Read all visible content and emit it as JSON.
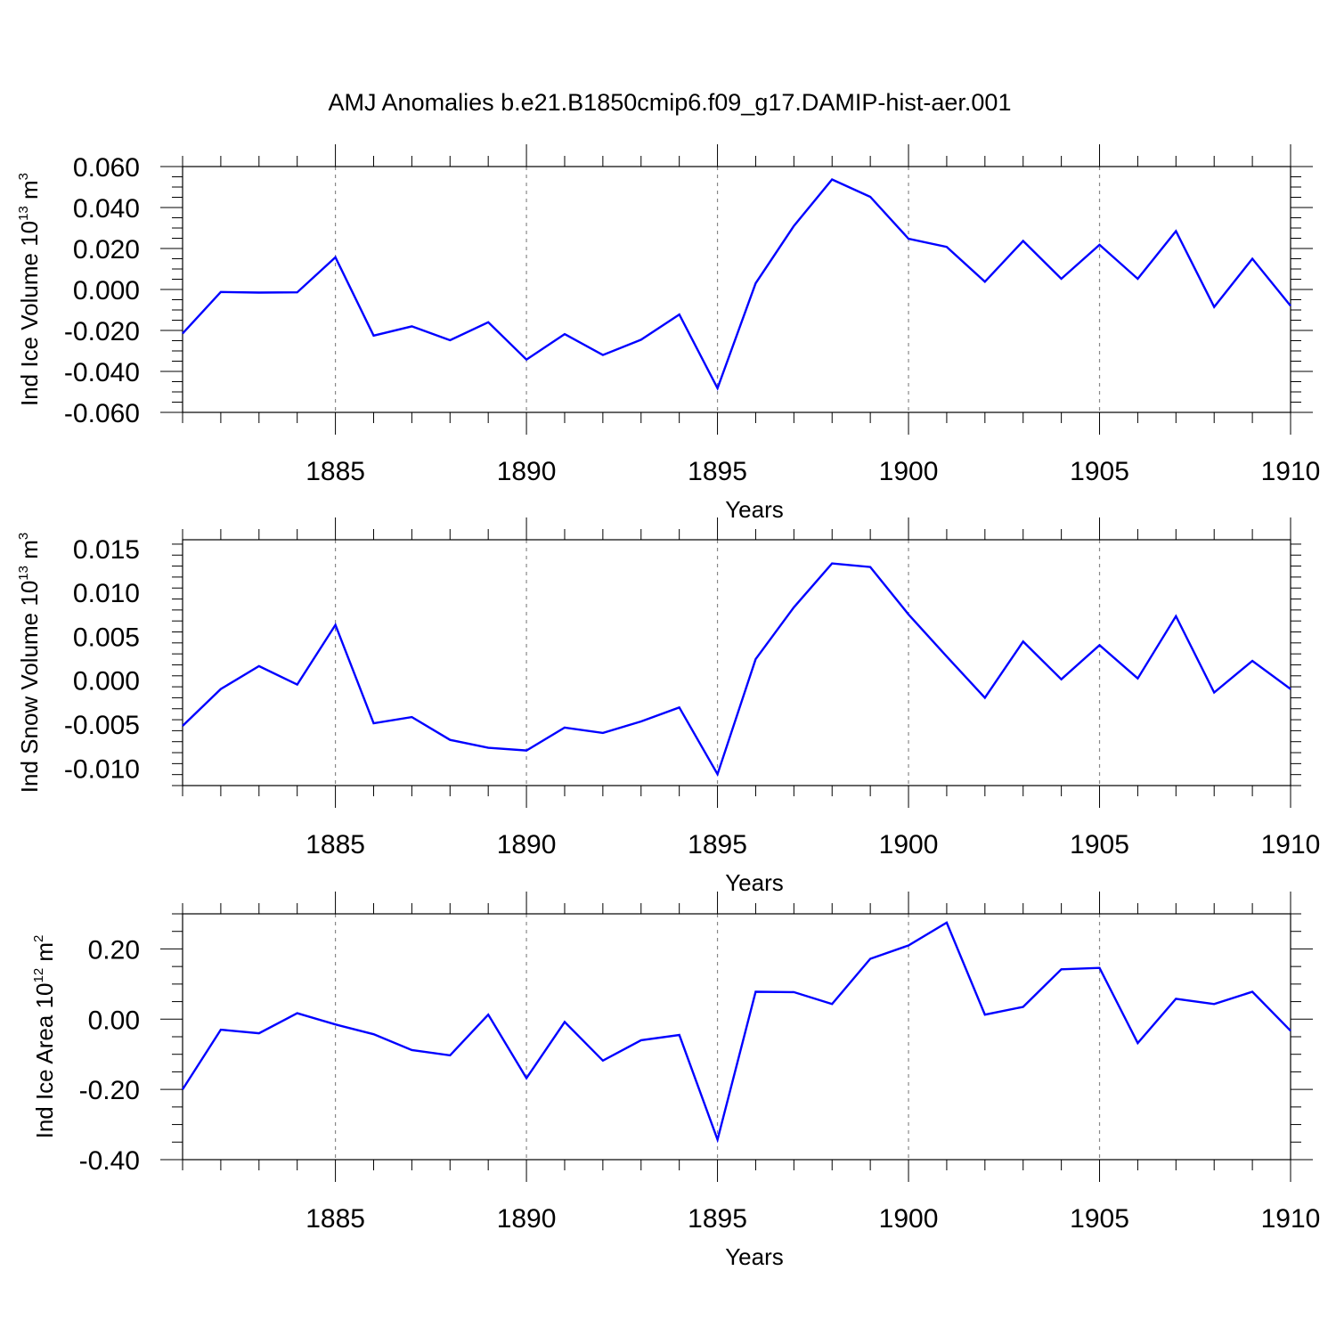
{
  "figure": {
    "title": "AMJ Anomalies b.e21.B1850cmip6.f09_g17.DAMIP-hist-aer.001"
  },
  "chart_data": [
    {
      "type": "line",
      "ylabel_parts": [
        "Ind Ice Volume 10",
        "13",
        " m",
        "3"
      ],
      "xlabel": "Years",
      "x": [
        1881,
        1882,
        1883,
        1884,
        1885,
        1886,
        1887,
        1888,
        1889,
        1890,
        1891,
        1892,
        1893,
        1894,
        1895,
        1896,
        1897,
        1898,
        1899,
        1900,
        1901,
        1902,
        1903,
        1904,
        1905,
        1906,
        1907,
        1908,
        1909,
        1910
      ],
      "series": [
        {
          "color": "#0000ff",
          "values": [
            -0.0215,
            -0.0012,
            -0.0015,
            -0.0014,
            0.0157,
            -0.0225,
            -0.018,
            -0.0248,
            -0.016,
            -0.0342,
            -0.0218,
            -0.032,
            -0.0245,
            -0.0122,
            -0.0482,
            0.003,
            0.031,
            0.0537,
            0.0452,
            0.0248,
            0.0208,
            0.0038,
            0.0237,
            0.0052,
            0.0218,
            0.0052,
            0.0285,
            -0.0085,
            0.015,
            -0.008
          ]
        }
      ],
      "xlim": [
        1881,
        1910
      ],
      "ylim": [
        -0.06,
        0.06
      ],
      "xticks": [
        1885,
        1890,
        1895,
        1900,
        1905,
        1910
      ],
      "yticks": [
        -0.06,
        -0.04,
        -0.02,
        0.0,
        0.02,
        0.04,
        0.06
      ],
      "ytick_labels": [
        "-0.060",
        "-0.040",
        "-0.020",
        "0.000",
        "0.020",
        "0.040",
        "0.060"
      ],
      "grid": "vertical dashed at major x ticks"
    },
    {
      "type": "line",
      "ylabel_parts": [
        "Ind Snow Volume 10",
        "13",
        " m",
        "3"
      ],
      "xlabel": "Years",
      "x": [
        1881,
        1882,
        1883,
        1884,
        1885,
        1886,
        1887,
        1888,
        1889,
        1890,
        1891,
        1892,
        1893,
        1894,
        1895,
        1896,
        1897,
        1898,
        1899,
        1900,
        1901,
        1902,
        1903,
        1904,
        1905,
        1906,
        1907,
        1908,
        1909,
        1910
      ],
      "series": [
        {
          "color": "#0000ff",
          "values": [
            -0.0052,
            -0.001,
            0.0016,
            -0.0005,
            0.0063,
            -0.0049,
            -0.0042,
            -0.0068,
            -0.0077,
            -0.008,
            -0.0054,
            -0.006,
            -0.0047,
            -0.0031,
            -0.0107,
            0.0024,
            0.0083,
            0.0133,
            0.0129,
            0.0075,
            0.0027,
            -0.002,
            0.0044,
            0.0001,
            0.004,
            0.0002,
            0.0073,
            -0.0014,
            0.0022,
            -0.001
          ]
        }
      ],
      "xlim": [
        1881,
        1910
      ],
      "ylim": [
        -0.012,
        0.016
      ],
      "xticks": [
        1885,
        1890,
        1895,
        1900,
        1905,
        1910
      ],
      "yticks": [
        -0.01,
        -0.005,
        0.0,
        0.005,
        0.01,
        0.015
      ],
      "ytick_labels": [
        "-0.010",
        "-0.005",
        "0.000",
        "0.005",
        "0.010",
        "0.015"
      ],
      "grid": "vertical dashed at major x ticks"
    },
    {
      "type": "line",
      "ylabel_parts": [
        "Ind Ice Area 10",
        "12",
        " m",
        "2"
      ],
      "xlabel": "Years",
      "x": [
        1881,
        1882,
        1883,
        1884,
        1885,
        1886,
        1887,
        1888,
        1889,
        1890,
        1891,
        1892,
        1893,
        1894,
        1895,
        1896,
        1897,
        1898,
        1899,
        1900,
        1901,
        1902,
        1903,
        1904,
        1905,
        1906,
        1907,
        1908,
        1909,
        1910
      ],
      "series": [
        {
          "color": "#0000ff",
          "values": [
            -0.2,
            -0.03,
            -0.04,
            0.017,
            -0.015,
            -0.043,
            -0.088,
            -0.103,
            0.013,
            -0.168,
            -0.008,
            -0.118,
            -0.06,
            -0.045,
            -0.343,
            0.078,
            0.077,
            0.043,
            0.172,
            0.21,
            0.275,
            0.013,
            0.035,
            0.142,
            0.146,
            -0.068,
            0.058,
            0.043,
            0.078,
            -0.033
          ]
        }
      ],
      "xlim": [
        1881,
        1910
      ],
      "ylim": [
        -0.4,
        0.3
      ],
      "xticks": [
        1885,
        1890,
        1895,
        1900,
        1905,
        1910
      ],
      "yticks": [
        -0.4,
        -0.2,
        0.0,
        0.2
      ],
      "ytick_labels": [
        "-0.40",
        "-0.20",
        "0.00",
        "0.20"
      ],
      "grid": "vertical dashed at major x ticks"
    }
  ]
}
